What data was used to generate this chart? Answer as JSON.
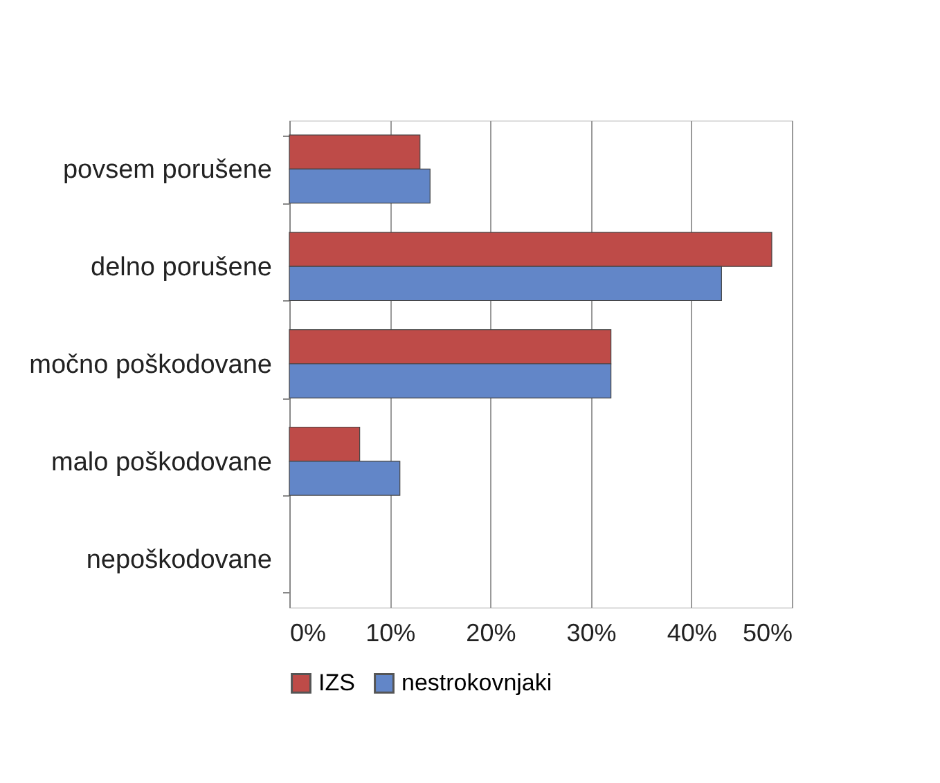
{
  "chart_data": {
    "type": "bar",
    "orientation": "horizontal",
    "categories": [
      "povsem porušene",
      "delno porušene",
      "močno poškodovane",
      "malo poškodovane",
      "nepoškodovane"
    ],
    "series": [
      {
        "name": "IZS",
        "color": "#be4b48",
        "values": [
          13,
          48,
          32,
          7,
          0
        ]
      },
      {
        "name": "nestrokovnjaki",
        "color": "#6286c8",
        "values": [
          14,
          43,
          32,
          11,
          0
        ]
      }
    ],
    "xlim": [
      0,
      50
    ],
    "xticks": [
      {
        "value": 0,
        "label": "0%"
      },
      {
        "value": 10,
        "label": "10%"
      },
      {
        "value": 20,
        "label": "20%"
      },
      {
        "value": 30,
        "label": "30%"
      },
      {
        "value": 40,
        "label": "40%"
      },
      {
        "value": 50,
        "label": "50%"
      }
    ],
    "grid": "x",
    "legend": "bottom"
  }
}
